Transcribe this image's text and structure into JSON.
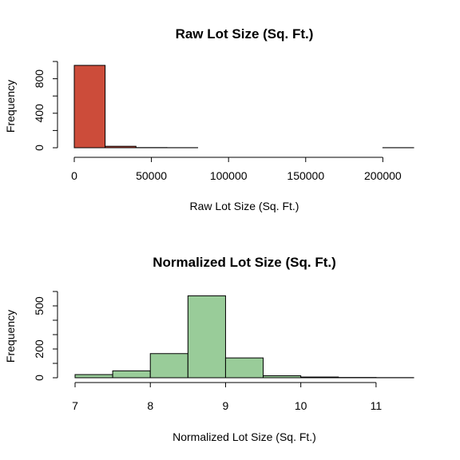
{
  "chart_data": [
    {
      "type": "bar",
      "subtype": "histogram",
      "title": "Raw Lot Size (Sq. Ft.)",
      "xlabel": "Raw Lot Size (Sq. Ft.)",
      "ylabel": "Frequency",
      "bar_color": "#cc4c3a",
      "bin_edges": [
        0,
        20000,
        40000,
        60000,
        80000,
        100000,
        120000,
        140000,
        160000,
        180000,
        200000,
        220000
      ],
      "values": [
        955,
        17,
        2,
        1,
        0,
        0,
        0,
        0,
        0,
        0,
        1
      ],
      "xlim": [
        0,
        220000
      ],
      "ylim": [
        0,
        1000
      ],
      "xticks": [
        0,
        50000,
        100000,
        150000,
        200000
      ],
      "xtick_labels": [
        "0",
        "50000",
        "100000",
        "150000",
        "200000"
      ],
      "yticks": [
        0,
        400,
        800
      ],
      "yticks_minor": [
        200,
        600,
        1000
      ],
      "grid": false
    },
    {
      "type": "bar",
      "subtype": "histogram",
      "title": "Normalized Lot Size (Sq. Ft.)",
      "xlabel": "Normalized Lot Size (Sq. Ft.)",
      "ylabel": "Frequency",
      "bar_color": "#99cc99",
      "bin_edges": [
        7,
        7.5,
        8,
        8.5,
        9,
        9.5,
        10,
        10.5,
        11,
        11.5
      ],
      "values": [
        22,
        48,
        168,
        570,
        138,
        14,
        5,
        2,
        1
      ],
      "xlim": [
        7,
        11.5
      ],
      "ylim": [
        0,
        600
      ],
      "xticks": [
        7,
        8,
        9,
        10,
        11
      ],
      "xtick_labels": [
        "7",
        "8",
        "9",
        "10",
        "11"
      ],
      "yticks": [
        0,
        200,
        500
      ],
      "yticks_minor": [
        100,
        300,
        400,
        600
      ],
      "grid": false
    }
  ]
}
